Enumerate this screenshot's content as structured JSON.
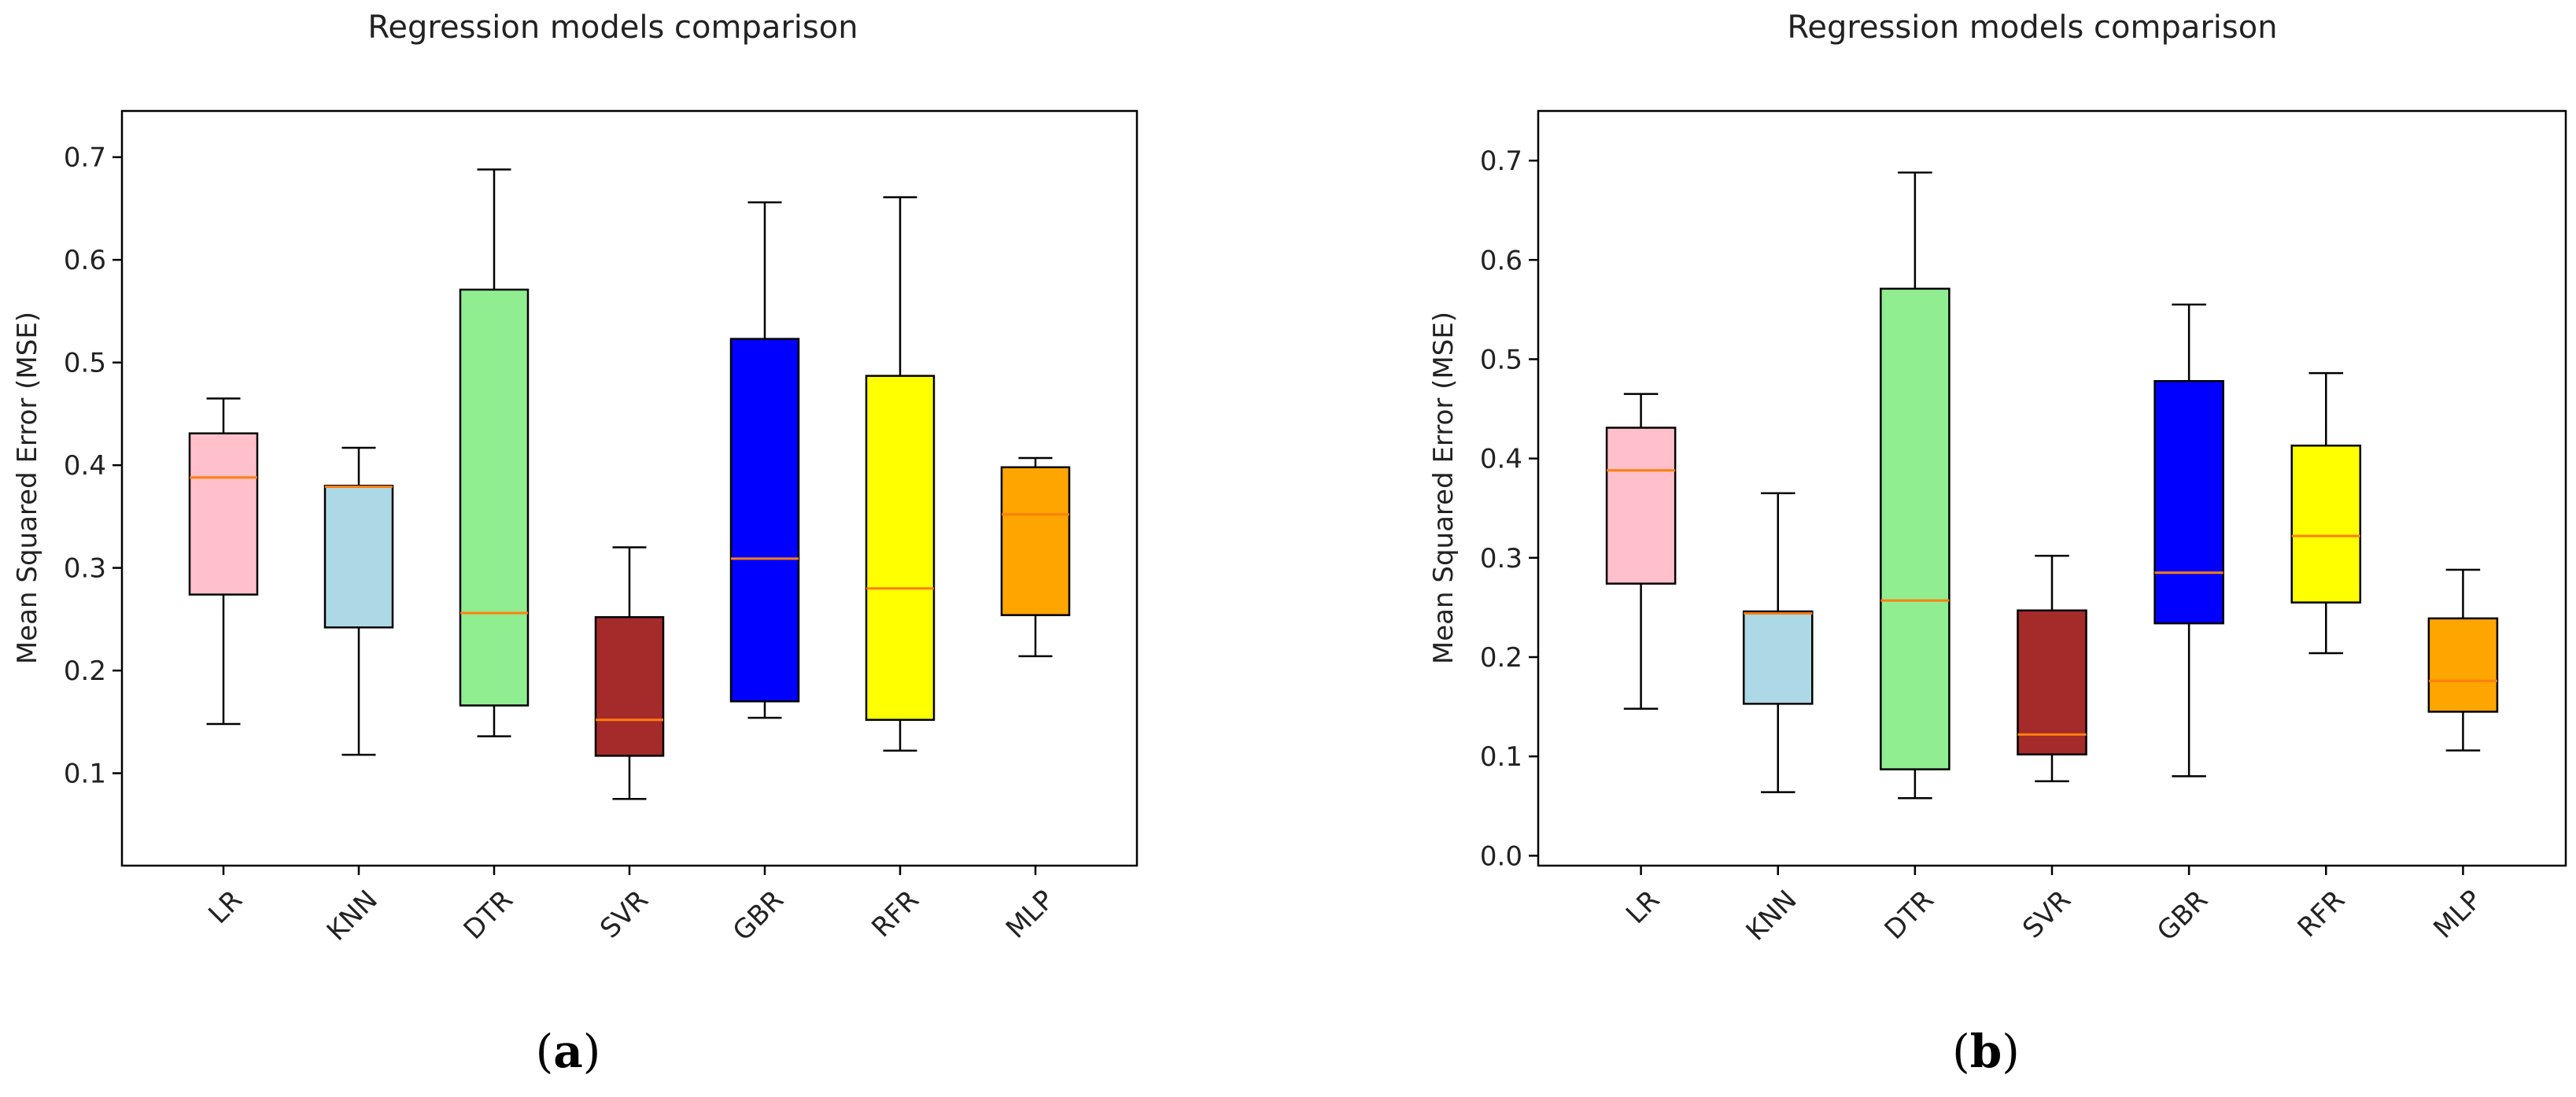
{
  "chart_data": [
    {
      "panel": "a",
      "type": "boxplot",
      "title": "Regression models comparison",
      "ylabel": "Mean Squared Error (MSE)",
      "xlabel": "",
      "ylim": [
        0.01,
        0.745
      ],
      "yticks": [
        0.1,
        0.2,
        0.3,
        0.4,
        0.5,
        0.6,
        0.7
      ],
      "ytick_labels": [
        "0.1",
        "0.2",
        "0.3",
        "0.4",
        "0.5",
        "0.6",
        "0.7"
      ],
      "categories": [
        "LR",
        "KNN",
        "DTR",
        "SVR",
        "GBR",
        "RFR",
        "MLP"
      ],
      "colors": [
        "#ffc0cb",
        "#add8e6",
        "#90ee90",
        "#a52a2a",
        "#0000ff",
        "#ffff00",
        "#ffa500"
      ],
      "median_color": "#ff7f0e",
      "boxes": [
        {
          "whislo": 0.148,
          "q1": 0.274,
          "med": 0.388,
          "q3": 0.431,
          "whishi": 0.465
        },
        {
          "whislo": 0.118,
          "q1": 0.242,
          "med": 0.379,
          "q3": 0.38,
          "whishi": 0.417
        },
        {
          "whislo": 0.136,
          "q1": 0.166,
          "med": 0.256,
          "q3": 0.571,
          "whishi": 0.688
        },
        {
          "whislo": 0.075,
          "q1": 0.117,
          "med": 0.152,
          "q3": 0.252,
          "whishi": 0.32
        },
        {
          "whislo": 0.154,
          "q1": 0.17,
          "med": 0.309,
          "q3": 0.523,
          "whishi": 0.656
        },
        {
          "whislo": 0.122,
          "q1": 0.152,
          "med": 0.28,
          "q3": 0.487,
          "whishi": 0.661
        },
        {
          "whislo": 0.214,
          "q1": 0.254,
          "med": 0.352,
          "q3": 0.398,
          "whishi": 0.407
        }
      ]
    },
    {
      "panel": "b",
      "type": "boxplot",
      "title": "Regression models comparison",
      "ylabel": "Mean Squared Error (MSE)",
      "xlabel": "",
      "ylim": [
        -0.01,
        0.75
      ],
      "yticks": [
        0.0,
        0.1,
        0.2,
        0.3,
        0.4,
        0.5,
        0.6,
        0.7
      ],
      "ytick_labels": [
        "0.0",
        "0.1",
        "0.2",
        "0.3",
        "0.4",
        "0.5",
        "0.6",
        "0.7"
      ],
      "categories": [
        "LR",
        "KNN",
        "DTR",
        "SVR",
        "GBR",
        "RFR",
        "MLP"
      ],
      "colors": [
        "#ffc0cb",
        "#add8e6",
        "#90ee90",
        "#a52a2a",
        "#0000ff",
        "#ffff00",
        "#ffa500"
      ],
      "median_color": "#ff7f0e",
      "boxes": [
        {
          "whislo": 0.148,
          "q1": 0.274,
          "med": 0.388,
          "q3": 0.431,
          "whishi": 0.465
        },
        {
          "whislo": 0.064,
          "q1": 0.153,
          "med": 0.244,
          "q3": 0.246,
          "whishi": 0.365
        },
        {
          "whislo": 0.058,
          "q1": 0.087,
          "med": 0.257,
          "q3": 0.571,
          "whishi": 0.688
        },
        {
          "whislo": 0.075,
          "q1": 0.102,
          "med": 0.122,
          "q3": 0.247,
          "whishi": 0.302
        },
        {
          "whislo": 0.08,
          "q1": 0.234,
          "med": 0.285,
          "q3": 0.478,
          "whishi": 0.555
        },
        {
          "whislo": 0.204,
          "q1": 0.255,
          "med": 0.322,
          "q3": 0.413,
          "whishi": 0.486
        },
        {
          "whislo": 0.106,
          "q1": 0.145,
          "med": 0.176,
          "q3": 0.239,
          "whishi": 0.288
        }
      ]
    }
  ],
  "panel_labels": [
    {
      "open": "(",
      "letter": "a",
      "close": ")"
    },
    {
      "open": "(",
      "letter": "b",
      "close": ")"
    }
  ]
}
